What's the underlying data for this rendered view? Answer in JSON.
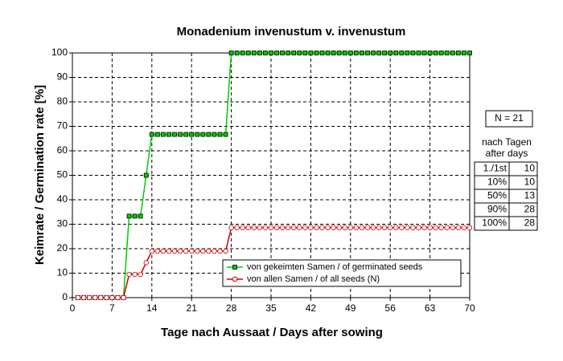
{
  "chart_data": {
    "type": "line",
    "title": "Monadenium invenustum v. invenustum",
    "x_label": "Tage nach Aussaat / Days after sowing",
    "y_label": "Keimrate / Germination rate [%]",
    "x": [
      1,
      2,
      3,
      4,
      5,
      6,
      7,
      8,
      9,
      10,
      11,
      12,
      13,
      14,
      15,
      16,
      17,
      18,
      19,
      20,
      21,
      22,
      23,
      24,
      25,
      26,
      27,
      28,
      29,
      30,
      31,
      32,
      33,
      34,
      35,
      36,
      37,
      38,
      39,
      40,
      41,
      42,
      43,
      44,
      45,
      46,
      47,
      48,
      49,
      50,
      51,
      52,
      53,
      54,
      55,
      56,
      57,
      58,
      59,
      60,
      61,
      62,
      63,
      64,
      65,
      66,
      67,
      68,
      69,
      70
    ],
    "series": [
      {
        "name": "von gekeimten Samen / of germinated seeds",
        "color": "#00cc00",
        "marker_fill": "#00cc00",
        "values": [
          0,
          0,
          0,
          0,
          0,
          0,
          0,
          0,
          0,
          33.3,
          33.3,
          33.3,
          50,
          66.7,
          66.7,
          66.7,
          66.7,
          66.7,
          66.7,
          66.7,
          66.7,
          66.7,
          66.7,
          66.7,
          66.7,
          66.7,
          66.7,
          100,
          100,
          100,
          100,
          100,
          100,
          100,
          100,
          100,
          100,
          100,
          100,
          100,
          100,
          100,
          100,
          100,
          100,
          100,
          100,
          100,
          100,
          100,
          100,
          100,
          100,
          100,
          100,
          100,
          100,
          100,
          100,
          100,
          100,
          100,
          100,
          100,
          100,
          100,
          100,
          100,
          100,
          100
        ]
      },
      {
        "name": "von allen Samen / of all seeds (N)",
        "color": "#cc0000",
        "marker_fill": "#ffffff",
        "values": [
          0,
          0,
          0,
          0,
          0,
          0,
          0,
          0,
          0,
          9.5,
          9.5,
          9.5,
          14.3,
          19,
          19,
          19,
          19,
          19,
          19,
          19,
          19,
          19,
          19,
          19,
          19,
          19,
          19,
          28.6,
          28.6,
          28.6,
          28.6,
          28.6,
          28.6,
          28.6,
          28.6,
          28.6,
          28.6,
          28.6,
          28.6,
          28.6,
          28.6,
          28.6,
          28.6,
          28.6,
          28.6,
          28.6,
          28.6,
          28.6,
          28.6,
          28.6,
          28.6,
          28.6,
          28.6,
          28.6,
          28.6,
          28.6,
          28.6,
          28.6,
          28.6,
          28.6,
          28.6,
          28.6,
          28.6,
          28.6,
          28.6,
          28.6,
          28.6,
          28.6,
          28.6,
          28.6
        ]
      }
    ],
    "xlim": [
      0,
      70
    ],
    "xticks": [
      0,
      7,
      14,
      21,
      28,
      35,
      42,
      49,
      56,
      63,
      70
    ],
    "ylim": [
      0,
      100
    ],
    "yticks": [
      0,
      10,
      20,
      30,
      40,
      50,
      60,
      70,
      80,
      90,
      100
    ],
    "grid": true,
    "legend": "lower right",
    "side_box": {
      "n_label": "N = 21",
      "header": [
        "nach Tagen",
        "after days"
      ],
      "rows": [
        [
          "1./1st",
          "10"
        ],
        [
          "10%",
          "10"
        ],
        [
          "50%",
          "13"
        ],
        [
          "90%",
          "28"
        ],
        [
          "100%",
          "28"
        ]
      ]
    }
  }
}
